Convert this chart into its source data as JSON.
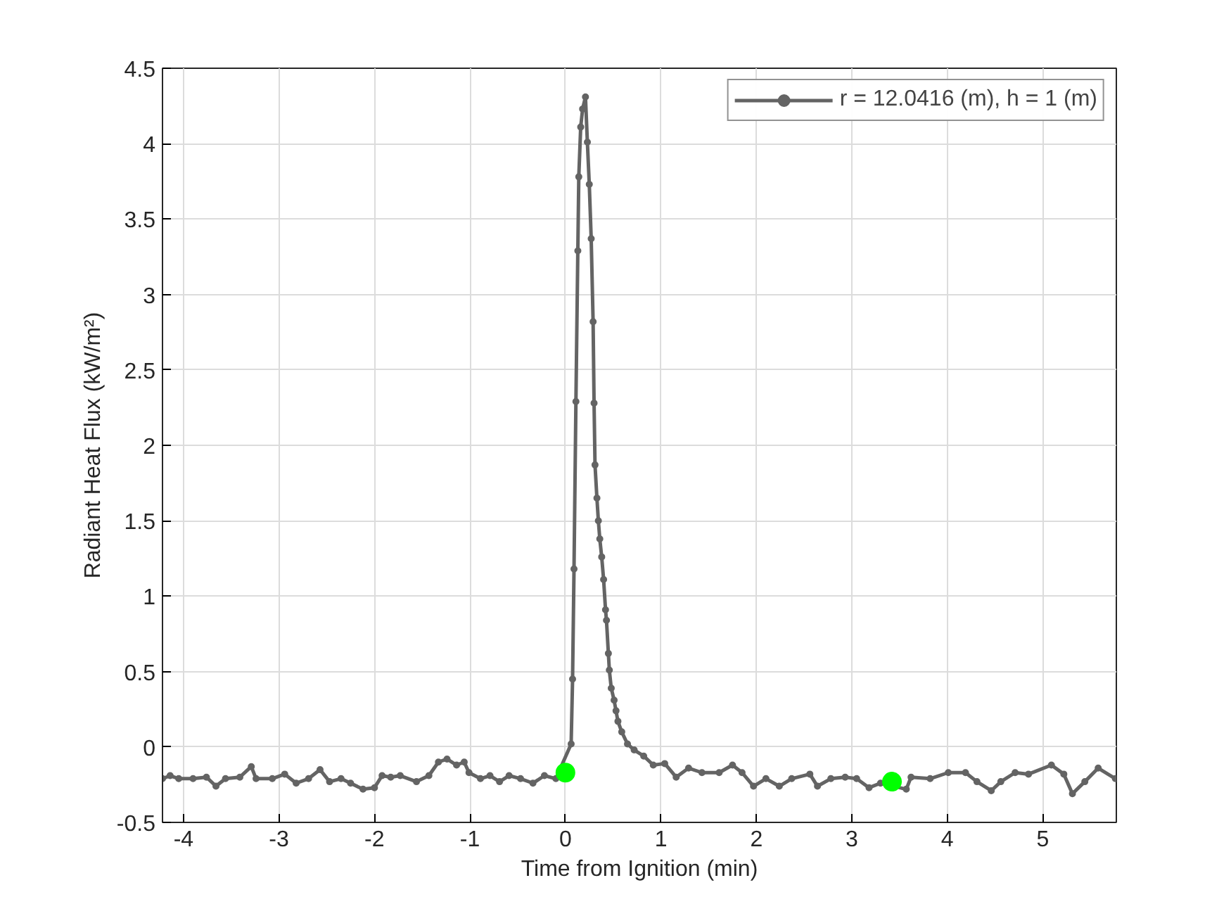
{
  "chart_data": {
    "type": "line",
    "xlabel": "Time from Ignition (min)",
    "ylabel": "Radiant Heat Flux (kW/m²)",
    "xlim": [
      -4.22,
      5.77
    ],
    "xticks": [
      -4,
      -3,
      -2,
      -1,
      0,
      1,
      2,
      3,
      4,
      5
    ],
    "ylim": [
      -0.5,
      4.5
    ],
    "yticks": [
      -0.5,
      0,
      0.5,
      1,
      1.5,
      2,
      2.5,
      3,
      3.5,
      4,
      4.5
    ],
    "grid": true,
    "legend": "top right",
    "series": [
      {
        "name": "r = 12.0416 (m), h = 1 (m)",
        "color": "#646464",
        "marker": "circle",
        "line_style": "solid",
        "x": [
          -4.22,
          -4.14,
          -4.05,
          -3.9,
          -3.76,
          -3.66,
          -3.56,
          -3.41,
          -3.29,
          -3.24,
          -3.07,
          -2.94,
          -2.82,
          -2.69,
          -2.57,
          -2.47,
          -2.35,
          -2.25,
          -2.12,
          -2.0,
          -1.92,
          -1.83,
          -1.73,
          -1.56,
          -1.43,
          -1.33,
          -1.24,
          -1.14,
          -1.06,
          -1.01,
          -0.89,
          -0.79,
          -0.69,
          -0.59,
          -0.47,
          -0.34,
          -0.22,
          -0.1,
          0.06,
          0.075,
          0.09,
          0.11,
          0.13,
          0.14,
          0.16,
          0.18,
          0.21,
          0.23,
          0.25,
          0.27,
          0.29,
          0.3,
          0.31,
          0.33,
          0.345,
          0.36,
          0.38,
          0.4,
          0.42,
          0.43,
          0.45,
          0.46,
          0.48,
          0.51,
          0.53,
          0.55,
          0.59,
          0.65,
          0.72,
          0.82,
          0.92,
          1.04,
          1.16,
          1.29,
          1.43,
          1.61,
          1.75,
          1.85,
          1.97,
          2.1,
          2.24,
          2.37,
          2.56,
          2.64,
          2.78,
          2.93,
          3.05,
          3.18,
          3.3,
          3.57,
          3.62,
          3.82,
          4.01,
          4.19,
          4.31,
          4.46,
          4.56,
          4.71,
          4.85,
          5.09,
          5.22,
          5.31,
          5.44,
          5.58,
          5.76
        ],
        "values": [
          -0.21,
          -0.19,
          -0.21,
          -0.21,
          -0.2,
          -0.26,
          -0.21,
          -0.2,
          -0.13,
          -0.21,
          -0.21,
          -0.18,
          -0.24,
          -0.21,
          -0.15,
          -0.23,
          -0.21,
          -0.24,
          -0.28,
          -0.27,
          -0.19,
          -0.2,
          -0.19,
          -0.23,
          -0.19,
          -0.1,
          -0.08,
          -0.12,
          -0.1,
          -0.17,
          -0.21,
          -0.19,
          -0.23,
          -0.19,
          -0.21,
          -0.24,
          -0.19,
          -0.21,
          0.02,
          0.45,
          1.18,
          2.29,
          3.29,
          3.78,
          4.11,
          4.23,
          4.31,
          4.01,
          3.73,
          3.37,
          2.82,
          2.28,
          1.87,
          1.65,
          1.5,
          1.38,
          1.26,
          1.11,
          0.91,
          0.84,
          0.62,
          0.51,
          0.39,
          0.31,
          0.24,
          0.17,
          0.1,
          0.02,
          -0.02,
          -0.06,
          -0.12,
          -0.11,
          -0.2,
          -0.14,
          -0.17,
          -0.17,
          -0.12,
          -0.17,
          -0.26,
          -0.21,
          -0.26,
          -0.21,
          -0.18,
          -0.26,
          -0.21,
          -0.2,
          -0.21,
          -0.27,
          -0.24,
          -0.28,
          -0.2,
          -0.21,
          -0.17,
          -0.17,
          -0.23,
          -0.29,
          -0.23,
          -0.17,
          -0.18,
          -0.12,
          -0.18,
          -0.31,
          -0.23,
          -0.14,
          -0.21
        ]
      },
      {
        "type": "scatter",
        "color": "#00ff00",
        "marker": "circle",
        "x": [
          0.0,
          3.42
        ],
        "values": [
          -0.17,
          -0.23
        ]
      }
    ]
  }
}
